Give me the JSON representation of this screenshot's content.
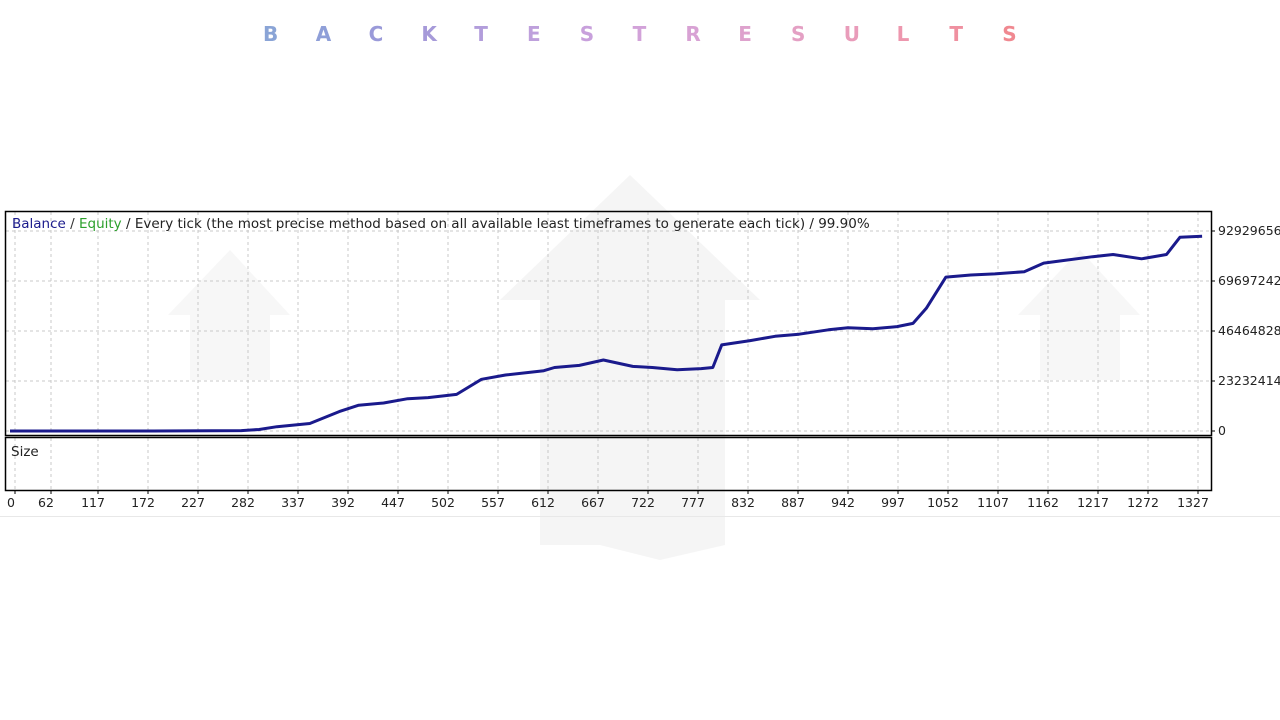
{
  "banner": {
    "letters": [
      "B",
      "A",
      "C",
      "K",
      "T",
      "E",
      "S",
      "T",
      "R",
      "E",
      "S",
      "U",
      "L",
      "T",
      "S"
    ],
    "colors": [
      "#8aa4d6",
      "#8f9fd8",
      "#9a9ad9",
      "#a69ad9",
      "#b29ddb",
      "#bea0dc",
      "#c8a0dc",
      "#d2a2d9",
      "#d8a2d4",
      "#dea2cd",
      "#e4a0c4",
      "#e99cba",
      "#ed97ae",
      "#ef90a0",
      "#f08890"
    ]
  },
  "legend": {
    "balance": "Balance",
    "sep1": " / ",
    "equity": "Equity",
    "rest": " / Every tick (the most precise method based on all available least timeframes to generate each tick) / 99.90%"
  },
  "size_label": "Size",
  "colors": {
    "balance": "#1a1a8c",
    "equity": "#2ca02c",
    "grid": "#c8c8c8",
    "frame": "#000000",
    "watermark": "#ececec"
  },
  "chart_data": {
    "type": "line",
    "title": "",
    "xlabel": "",
    "ylabel": "",
    "x_ticks": [
      "0",
      "62",
      "117",
      "172",
      "227",
      "282",
      "337",
      "392",
      "447",
      "502",
      "557",
      "612",
      "667",
      "722",
      "777",
      "832",
      "887",
      "942",
      "997",
      "1052",
      "1107",
      "1162",
      "1217",
      "1272",
      "1327"
    ],
    "y_ticks": [
      "0",
      "23232414",
      "46464828",
      "69697242",
      "92929656"
    ],
    "xlim": [
      0,
      1350
    ],
    "ylim": [
      0,
      92929656
    ],
    "grid": true,
    "series": [
      {
        "name": "Balance",
        "x": [
          0,
          160,
          260,
          280,
          300,
          337,
          370,
          392,
          420,
          447,
          470,
          502,
          530,
          557,
          600,
          612,
          640,
          667,
          700,
          722,
          750,
          777,
          790,
          800,
          832,
          860,
          887,
          920,
          942,
          970,
          997,
          1015,
          1030,
          1052,
          1080,
          1107,
          1140,
          1162,
          1180,
          1217,
          1240,
          1272,
          1300,
          1315,
          1340
        ],
        "y": [
          0,
          0,
          200000,
          700000,
          2000000,
          3500000,
          9000000,
          12000000,
          13000000,
          15000000,
          15500000,
          17000000,
          24000000,
          26000000,
          28000000,
          29500000,
          30500000,
          33000000,
          30000000,
          29500000,
          28500000,
          29000000,
          29500000,
          40000000,
          42000000,
          44000000,
          45000000,
          47000000,
          48000000,
          47500000,
          48500000,
          50000000,
          57000000,
          71500000,
          72500000,
          73000000,
          74000000,
          78000000,
          79000000,
          81000000,
          82000000,
          80000000,
          82000000,
          90000000,
          90500000
        ]
      }
    ],
    "subpanel": "Size"
  }
}
